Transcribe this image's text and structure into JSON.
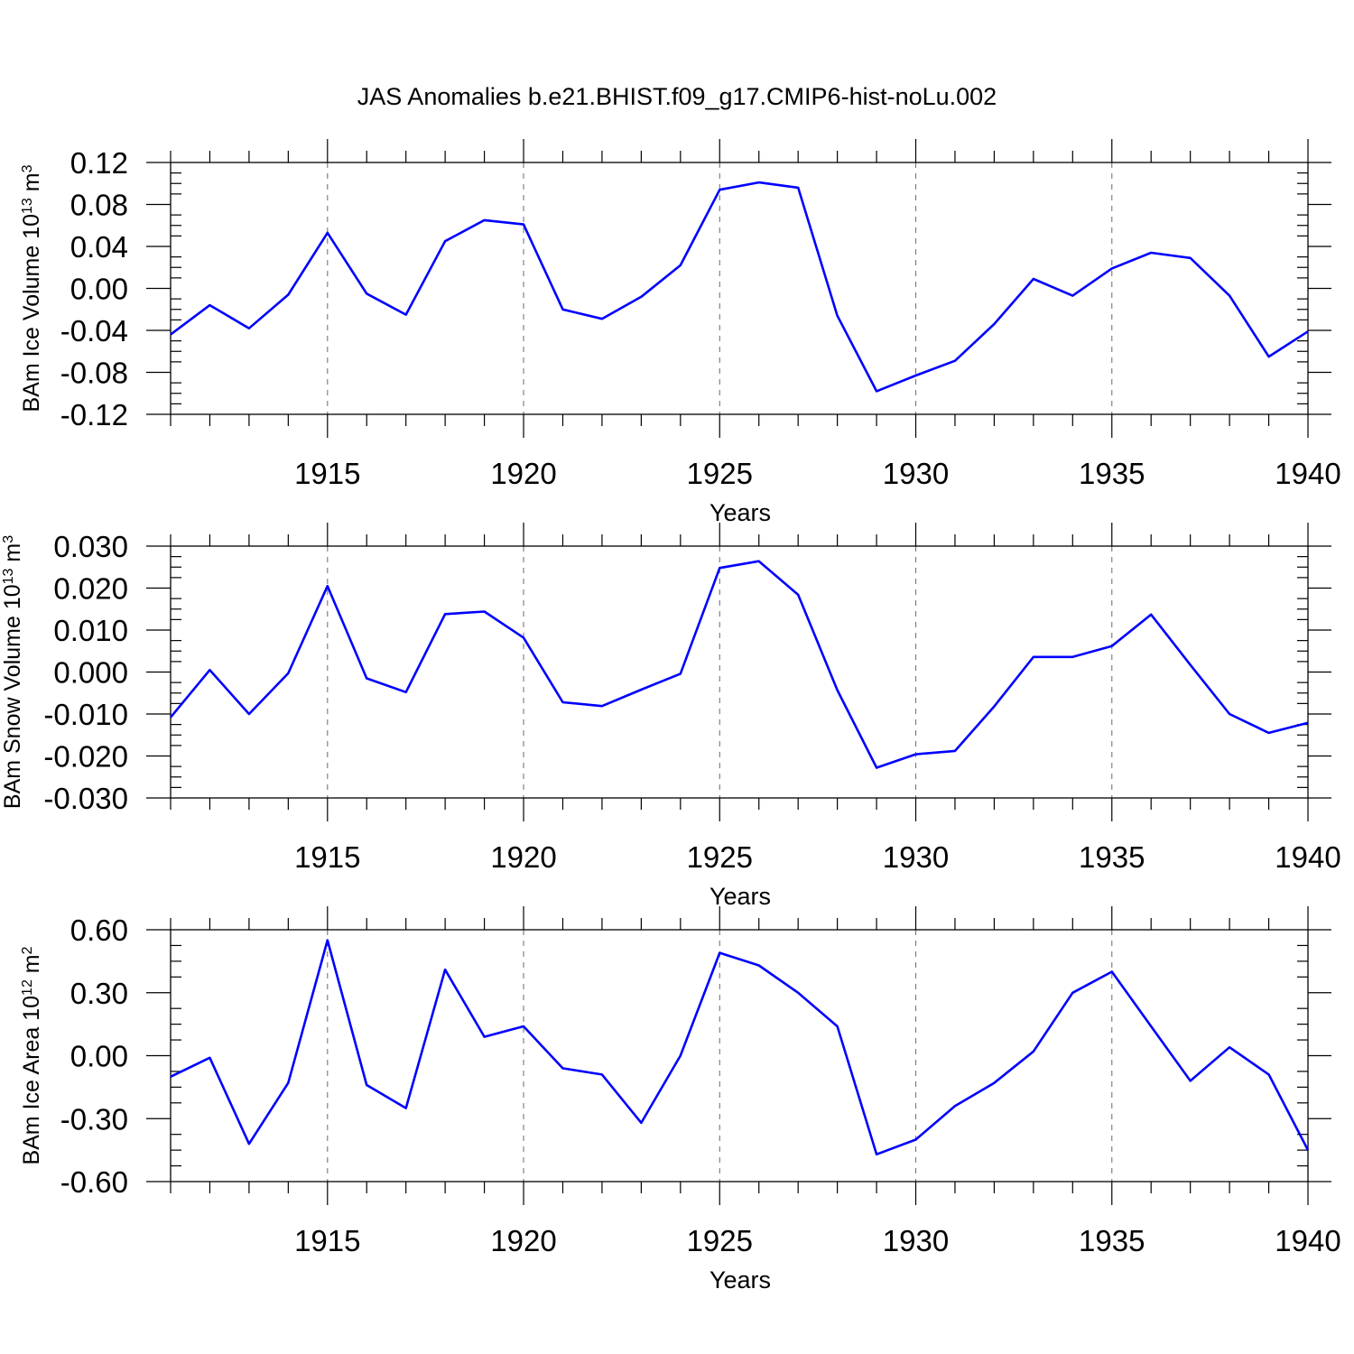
{
  "title": "JAS Anomalies b.e21.BHIST.f09_g17.CMIP6-hist-noLu.002",
  "line_color": "#0000ff",
  "chart_data": [
    {
      "type": "line",
      "ylabel_base": "BAm Ice Volume 10",
      "ylabel_exp": "13",
      "ylabel_unit": " m",
      "ylabel_unit_exp": "3",
      "xlabel": "Years",
      "xlim": [
        1911,
        1940
      ],
      "ylim": [
        -0.12,
        0.12
      ],
      "yticks": [
        -0.12,
        -0.08,
        -0.04,
        0.0,
        0.04,
        0.08,
        0.12
      ],
      "ytick_labels": [
        "-0.12",
        "-0.08",
        "-0.04",
        "0.00",
        "0.04",
        "0.08",
        "0.12"
      ],
      "xticks": [
        1915,
        1920,
        1925,
        1930,
        1935,
        1940
      ],
      "xtick_labels": [
        "1915",
        "1920",
        "1925",
        "1930",
        "1935",
        "1940"
      ],
      "grid": "vertical dashed at major x ticks",
      "x": [
        1911,
        1912,
        1913,
        1914,
        1915,
        1916,
        1917,
        1918,
        1919,
        1920,
        1921,
        1922,
        1923,
        1924,
        1925,
        1926,
        1927,
        1928,
        1929,
        1930,
        1931,
        1932,
        1933,
        1934,
        1935,
        1936,
        1937,
        1938,
        1939,
        1940
      ],
      "values": [
        -0.044,
        -0.016,
        -0.038,
        -0.006,
        0.053,
        -0.005,
        -0.025,
        0.045,
        0.065,
        0.061,
        -0.02,
        -0.029,
        -0.008,
        0.022,
        0.094,
        0.101,
        0.096,
        -0.026,
        -0.098,
        -0.083,
        -0.069,
        -0.034,
        0.009,
        -0.007,
        0.019,
        0.034,
        0.029,
        -0.007,
        -0.065,
        -0.041
      ]
    },
    {
      "type": "line",
      "ylabel_base": "BAm Snow Volume 10",
      "ylabel_exp": "13",
      "ylabel_unit": " m",
      "ylabel_unit_exp": "3",
      "xlabel": "Years",
      "xlim": [
        1911,
        1940
      ],
      "ylim": [
        -0.03,
        0.03
      ],
      "yticks": [
        -0.03,
        -0.02,
        -0.01,
        0.0,
        0.01,
        0.02,
        0.03
      ],
      "ytick_labels": [
        "-0.030",
        "-0.020",
        "-0.010",
        "0.000",
        "0.010",
        "0.020",
        "0.030"
      ],
      "xticks": [
        1915,
        1920,
        1925,
        1930,
        1935,
        1940
      ],
      "xtick_labels": [
        "1915",
        "1920",
        "1925",
        "1930",
        "1935",
        "1940"
      ],
      "grid": "vertical dashed at major x ticks",
      "x": [
        1911,
        1912,
        1913,
        1914,
        1915,
        1916,
        1917,
        1918,
        1919,
        1920,
        1921,
        1922,
        1923,
        1924,
        1925,
        1926,
        1927,
        1928,
        1929,
        1930,
        1931,
        1932,
        1933,
        1934,
        1935,
        1936,
        1937,
        1938,
        1939,
        1940
      ],
      "values": [
        -0.0108,
        0.0005,
        -0.01,
        -0.0003,
        0.0205,
        -0.0015,
        -0.0048,
        0.0138,
        0.0144,
        0.0082,
        -0.0072,
        -0.0081,
        -0.0042,
        -0.0004,
        0.0248,
        0.0264,
        0.0184,
        -0.0043,
        -0.0228,
        -0.0196,
        -0.0188,
        -0.0082,
        0.0036,
        0.0036,
        0.0062,
        0.0137,
        0.0017,
        -0.01,
        -0.0145,
        -0.0121
      ]
    },
    {
      "type": "line",
      "ylabel_base": "BAm Ice Area 10",
      "ylabel_exp": "12",
      "ylabel_unit": " m",
      "ylabel_unit_exp": "2",
      "xlabel": "Years",
      "xlim": [
        1911,
        1940
      ],
      "ylim": [
        -0.6,
        0.6
      ],
      "yticks": [
        -0.6,
        -0.3,
        0.0,
        0.3,
        0.6
      ],
      "ytick_labels": [
        "-0.60",
        "-0.30",
        "0.00",
        "0.30",
        "0.60"
      ],
      "xticks": [
        1915,
        1920,
        1925,
        1930,
        1935,
        1940
      ],
      "xtick_labels": [
        "1915",
        "1920",
        "1925",
        "1930",
        "1935",
        "1940"
      ],
      "grid": "vertical dashed at major x ticks",
      "x": [
        1911,
        1912,
        1913,
        1914,
        1915,
        1916,
        1917,
        1918,
        1919,
        1920,
        1921,
        1922,
        1923,
        1924,
        1925,
        1926,
        1927,
        1928,
        1929,
        1930,
        1931,
        1932,
        1933,
        1934,
        1935,
        1936,
        1937,
        1938,
        1939,
        1940
      ],
      "values": [
        -0.1,
        -0.01,
        -0.42,
        -0.13,
        0.55,
        -0.14,
        -0.25,
        0.41,
        0.09,
        0.14,
        -0.06,
        -0.09,
        -0.32,
        0.0,
        0.49,
        0.43,
        0.3,
        0.14,
        -0.47,
        -0.4,
        -0.24,
        -0.13,
        0.02,
        0.3,
        0.4,
        0.14,
        -0.12,
        0.04,
        -0.09,
        -0.45
      ]
    }
  ]
}
